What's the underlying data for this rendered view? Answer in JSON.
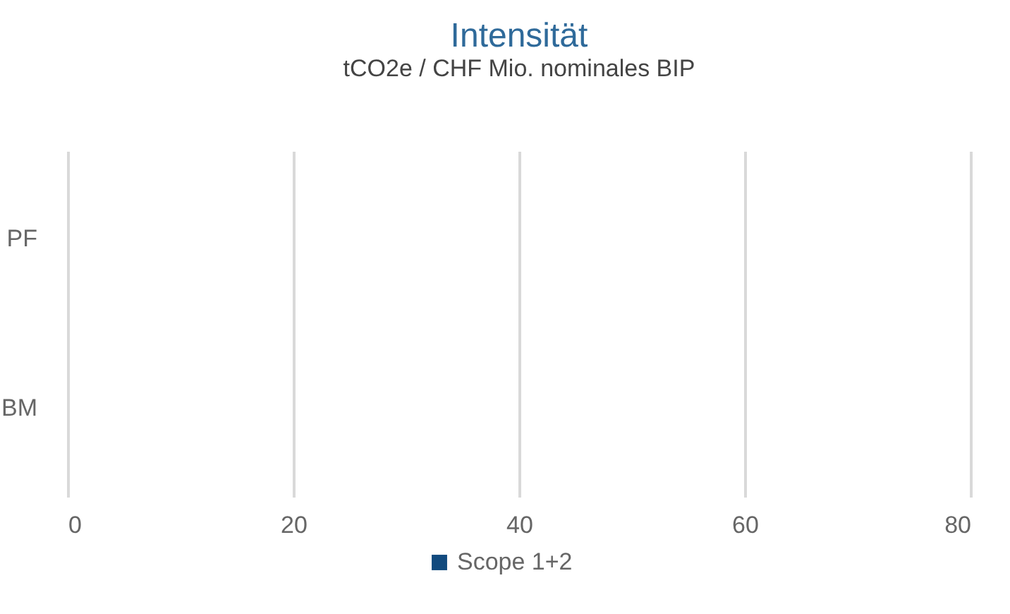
{
  "chart_data": {
    "type": "bar",
    "orientation": "horizontal",
    "title": "Intensität",
    "subtitle": "tCO2e / CHF Mio. nominales BIP",
    "categories": [
      "PF",
      "BM"
    ],
    "series": [
      {
        "name": "Scope 1+2",
        "color": "#114a7e",
        "values": [
          0,
          0
        ]
      }
    ],
    "xlim": [
      0,
      80
    ],
    "xticks": [
      0,
      20,
      40,
      60,
      80
    ],
    "grid": "x",
    "legend": "bottom"
  }
}
